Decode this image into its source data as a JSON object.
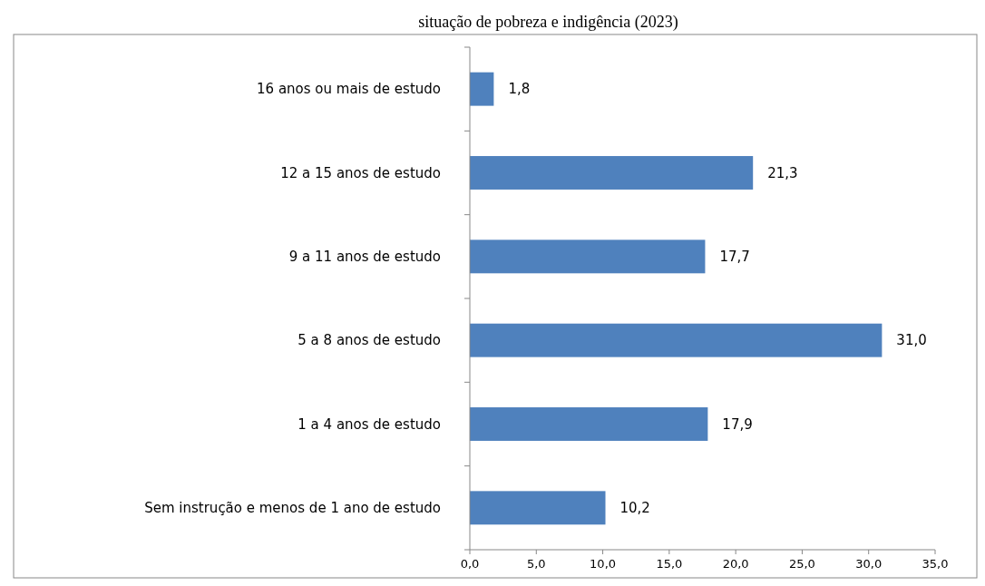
{
  "chart_data": {
    "type": "bar",
    "orientation": "horizontal",
    "title": "situação de pobreza e indigência (2023)",
    "categories": [
      "16 anos ou mais de estudo",
      "12 a 15 anos de estudo",
      "9 a 11 anos de estudo",
      "5 a 8 anos de estudo",
      "1 a 4 anos de estudo",
      "Sem instrução e menos de 1 ano de estudo"
    ],
    "values": [
      1.8,
      21.3,
      17.7,
      31.0,
      17.9,
      10.2
    ],
    "value_labels": [
      "1,8",
      "21,3",
      "17,7",
      "31,0",
      "17,9",
      "10,2"
    ],
    "color": "#4f81bd",
    "xlim": [
      0,
      35
    ],
    "xticks": [
      {
        "value": 0,
        "label": "0,0"
      },
      {
        "value": 5,
        "label": "5,0"
      },
      {
        "value": 10,
        "label": "10,0"
      },
      {
        "value": 15,
        "label": "15,0"
      },
      {
        "value": 20,
        "label": "20,0"
      },
      {
        "value": 25,
        "label": "25,0"
      },
      {
        "value": 30,
        "label": "30,0"
      },
      {
        "value": 35,
        "label": "35,0"
      }
    ],
    "grid": false
  }
}
